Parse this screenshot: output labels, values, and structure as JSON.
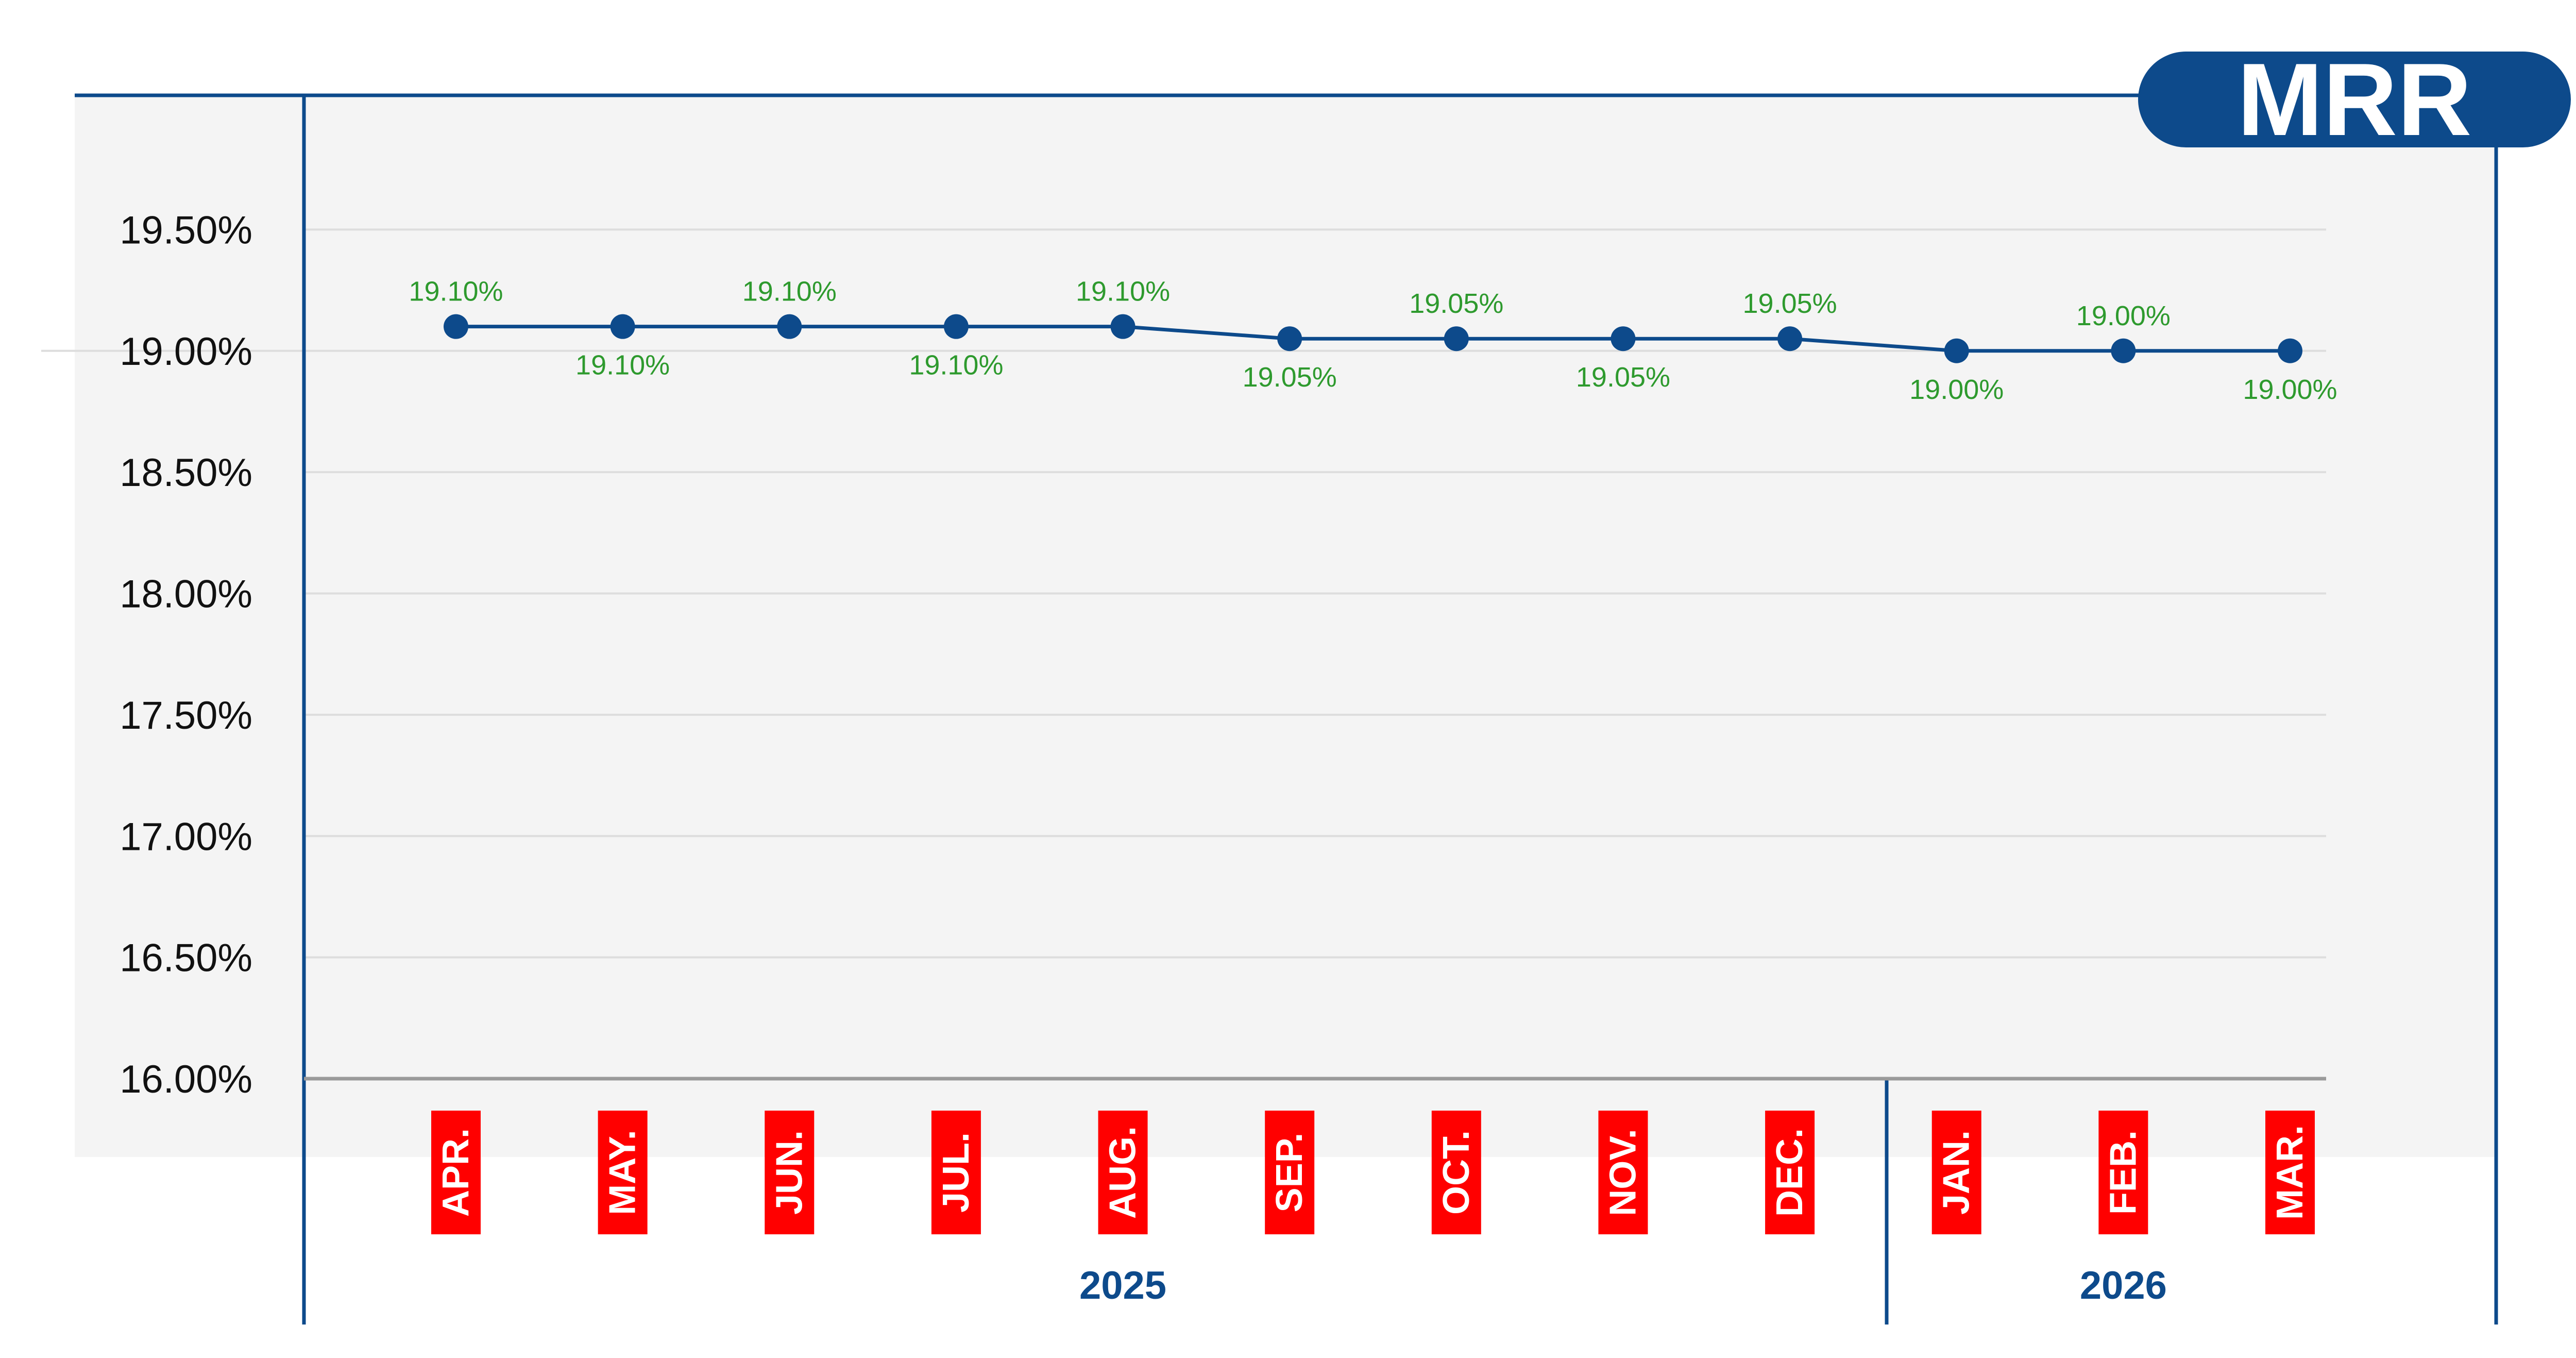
{
  "badge": {
    "label": "MRR"
  },
  "colors": {
    "line": "#0d4a8b",
    "data_label": "#2e9a2e",
    "month_box": "#ff0000",
    "panel": "#f4f4f4",
    "frame": "#0d4a8b",
    "baseline": "#9a9a9a"
  },
  "chart_data": {
    "type": "line",
    "categories": [
      "APR.",
      "MAY.",
      "JUN.",
      "JUL.",
      "AUG.",
      "SEP.",
      "OCT.",
      "NOV.",
      "DEC.",
      "JAN.",
      "FEB.",
      "MAR."
    ],
    "years": [
      {
        "label": "2025",
        "months": 9
      },
      {
        "label": "2026",
        "months": 3
      }
    ],
    "series": [
      {
        "values": [
          19.1,
          19.1,
          19.1,
          19.1,
          19.1,
          19.05,
          19.05,
          19.05,
          19.05,
          19.0,
          19.0,
          19.0
        ],
        "labels": [
          "19.10%",
          "19.10%",
          "19.10%",
          "19.10%",
          "19.10%",
          "19.05%",
          "19.05%",
          "19.05%",
          "19.05%",
          "19.00%",
          "19.00%",
          "19.00%"
        ],
        "label_positions": [
          "above",
          "below",
          "above",
          "below",
          "above",
          "below",
          "above",
          "below",
          "above",
          "below",
          "above",
          "below"
        ]
      }
    ],
    "ylim": [
      16.0,
      20.0
    ],
    "yticks": [
      16.0,
      16.5,
      17.0,
      17.5,
      18.0,
      18.5,
      19.0,
      19.5
    ],
    "ytick_labels": [
      "16.00%",
      "16.50%",
      "17.00%",
      "17.50%",
      "18.00%",
      "18.50%",
      "19.00%",
      "19.50%"
    ],
    "grid": true,
    "title": "",
    "xlabel": "",
    "ylabel": ""
  }
}
